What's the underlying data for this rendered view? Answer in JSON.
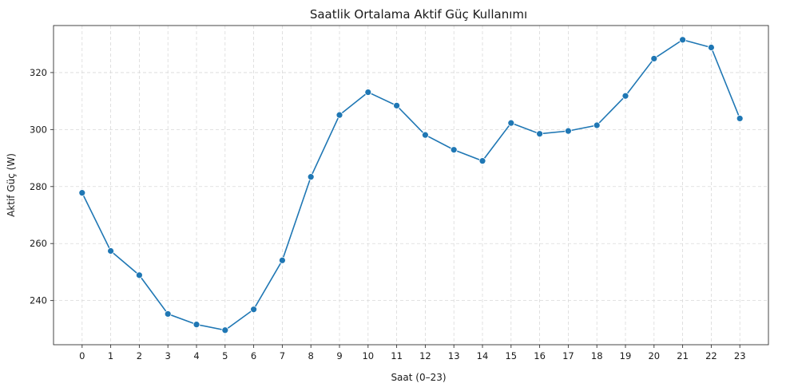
{
  "chart_data": {
    "type": "line",
    "title": "Saatlik Ortalama Aktif Güç Kullanımı",
    "xlabel": "Saat (0–23)",
    "ylabel": "Aktif Güç (W)",
    "x": [
      0,
      1,
      2,
      3,
      4,
      5,
      6,
      7,
      8,
      9,
      10,
      11,
      12,
      13,
      14,
      15,
      16,
      17,
      18,
      19,
      20,
      21,
      22,
      23
    ],
    "x_tick_labels": [
      "0",
      "1",
      "2",
      "3",
      "4",
      "5",
      "6",
      "7",
      "8",
      "9",
      "10",
      "11",
      "12",
      "13",
      "14",
      "15",
      "16",
      "17",
      "18",
      "19",
      "20",
      "21",
      "22",
      "23"
    ],
    "y_ticks": [
      240,
      260,
      280,
      300,
      320
    ],
    "y_tick_labels": [
      "240",
      "260",
      "280",
      "300",
      "320"
    ],
    "xlim": [
      -1,
      24
    ],
    "ylim": [
      224.5,
      336.5
    ],
    "grid": true,
    "series": [
      {
        "color": "#1f77b4",
        "marker": "circle",
        "values": [
          277.8,
          257.4,
          248.9,
          235.3,
          231.6,
          229.6,
          236.9,
          254.1,
          283.4,
          305.1,
          313.1,
          308.4,
          298.1,
          292.9,
          289.0,
          302.3,
          298.5,
          299.5,
          301.5,
          311.8,
          324.9,
          331.5,
          328.8,
          303.9
        ]
      }
    ]
  }
}
